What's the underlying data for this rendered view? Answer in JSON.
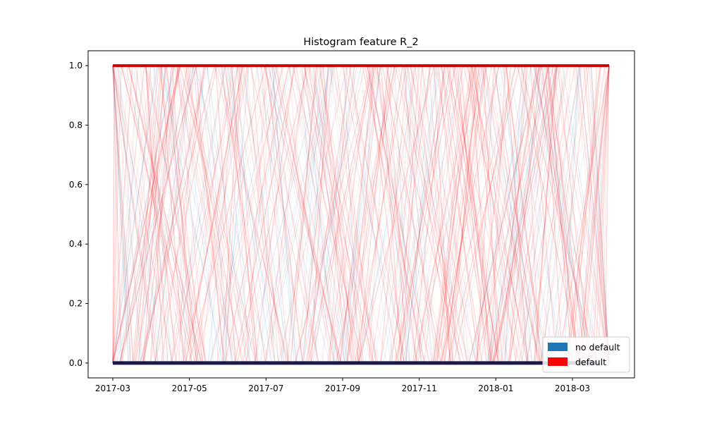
{
  "chart_data": {
    "type": "line",
    "title": "Histogram feature R_2",
    "xlabel": "",
    "ylabel": "",
    "x_ticks": [
      "2017-03",
      "2017-05",
      "2017-07",
      "2017-09",
      "2017-11",
      "2018-01",
      "2018-03"
    ],
    "x_range": [
      "2017-03-01",
      "2018-03-31"
    ],
    "y_ticks": [
      "0.0",
      "0.2",
      "0.4",
      "0.6",
      "0.8",
      "1.0"
    ],
    "ylim": [
      -0.05,
      1.05
    ],
    "grid": false,
    "legend": {
      "position": "lower-right",
      "entries": [
        {
          "label": "no default",
          "color": "#1f77b4"
        },
        {
          "label": "default",
          "color": "#ff0000"
        }
      ]
    },
    "series": [
      {
        "name": "no default",
        "color": "#1f77b4",
        "values_range": [
          0.0,
          1.0
        ],
        "dominant_levels": [
          0.0
        ]
      },
      {
        "name": "default",
        "color": "#ff0000",
        "values_range": [
          0.0,
          1.0
        ],
        "dominant_levels": [
          1.0
        ]
      }
    ],
    "colors": {
      "no_default_baseline": "#1a1a4a",
      "default_topline": "#cc0000"
    }
  }
}
